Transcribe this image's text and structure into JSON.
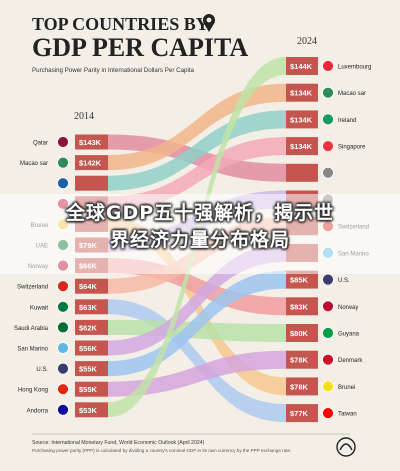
{
  "header": {
    "title_line1": "TOP COUNTRIES BY",
    "title_line2": "GDP PER CAPITA",
    "subtitle": "Purchasing Power Parity in International Dollars Per Capita"
  },
  "banner": {
    "line1": "全球GDP五十强解析，揭示世",
    "line2": "界经济力量分布格局"
  },
  "footer": {
    "source": "Source: International Monetary Fund, World Economic Outlook (April 2024)",
    "note": "Purchasing power parity (PPP) is calculated by dividing a country's nominal GDP in its own currency by the PPP exchange rate."
  },
  "chart_data": {
    "type": "bump",
    "title": "TOP COUNTRIES BY GDP PER CAPITA",
    "subtitle": "Purchasing Power Parity in International Dollars Per Capita",
    "x": [
      "2014",
      "2024"
    ],
    "left": [
      {
        "country": "Qatar",
        "label": "$143K",
        "value": 143
      },
      {
        "country": "Macao sar",
        "label": "$142K",
        "value": 142
      },
      {
        "country": "",
        "label": "",
        "value": null
      },
      {
        "country": "",
        "label": "",
        "value": null
      },
      {
        "country": "Brunei",
        "label": "",
        "value": null
      },
      {
        "country": "UAE",
        "label": "$79K",
        "value": 79
      },
      {
        "country": "Norway",
        "label": "$66K",
        "value": 66
      },
      {
        "country": "Switzerland",
        "label": "$64K",
        "value": 64
      },
      {
        "country": "Kuwait",
        "label": "$63K",
        "value": 63
      },
      {
        "country": "Saudi Arabia",
        "label": "$62K",
        "value": 62
      },
      {
        "country": "San Marino",
        "label": "$56K",
        "value": 56
      },
      {
        "country": "U.S.",
        "label": "$55K",
        "value": 55
      },
      {
        "country": "Hong Kong",
        "label": "$55K",
        "value": 55
      },
      {
        "country": "Andorra",
        "label": "$53K",
        "value": 53
      }
    ],
    "right": [
      {
        "country": "Luxembourg",
        "label": "$144K",
        "value": 144
      },
      {
        "country": "Macao sar",
        "label": "$134K",
        "value": 134
      },
      {
        "country": "Ireland",
        "label": "$134K",
        "value": 134
      },
      {
        "country": "Singapore",
        "label": "$134K",
        "value": 134
      },
      {
        "country": "",
        "label": "",
        "value": null
      },
      {
        "country": "",
        "label": "",
        "value": null
      },
      {
        "country": "Switzerland",
        "label": "",
        "value": null
      },
      {
        "country": "San Marino",
        "label": "",
        "value": null
      },
      {
        "country": "U.S.",
        "label": "$85K",
        "value": 85
      },
      {
        "country": "Norway",
        "label": "$83K",
        "value": 83
      },
      {
        "country": "Guyana",
        "label": "$80K",
        "value": 80
      },
      {
        "country": "Denmark",
        "label": "$78K",
        "value": 78
      },
      {
        "country": "Brunei",
        "label": "$78K",
        "value": 78
      },
      {
        "country": "Taiwan",
        "label": "$77K",
        "value": 77
      }
    ],
    "ribbons": [
      {
        "from": 0,
        "to": 4,
        "color": "#e08da0"
      },
      {
        "from": 1,
        "to": 1,
        "color": "#f1b58a"
      },
      {
        "from": 2,
        "to": 2,
        "color": "#8fd0c8"
      },
      {
        "from": 3,
        "to": 3,
        "color": "#f3a9b6"
      },
      {
        "from": 4,
        "to": 12,
        "color": "#f6c88e"
      },
      {
        "from": 5,
        "to": 5,
        "color": "#c9b6e6"
      },
      {
        "from": 6,
        "to": 9,
        "color": "#f09e9e"
      },
      {
        "from": 7,
        "to": 6,
        "color": "#f7b8a6"
      },
      {
        "from": 8,
        "to": 13,
        "color": "#aec9f0"
      },
      {
        "from": 9,
        "to": 10,
        "color": "#b8e0a8"
      },
      {
        "from": 10,
        "to": 7,
        "color": "#d1a8e0"
      },
      {
        "from": 11,
        "to": 8,
        "color": "#9ec4ef"
      },
      {
        "from": 12,
        "to": 11,
        "color": "#d5a4dc"
      },
      {
        "from": 13,
        "to": 0,
        "color": "#bfe3a7"
      }
    ]
  }
}
